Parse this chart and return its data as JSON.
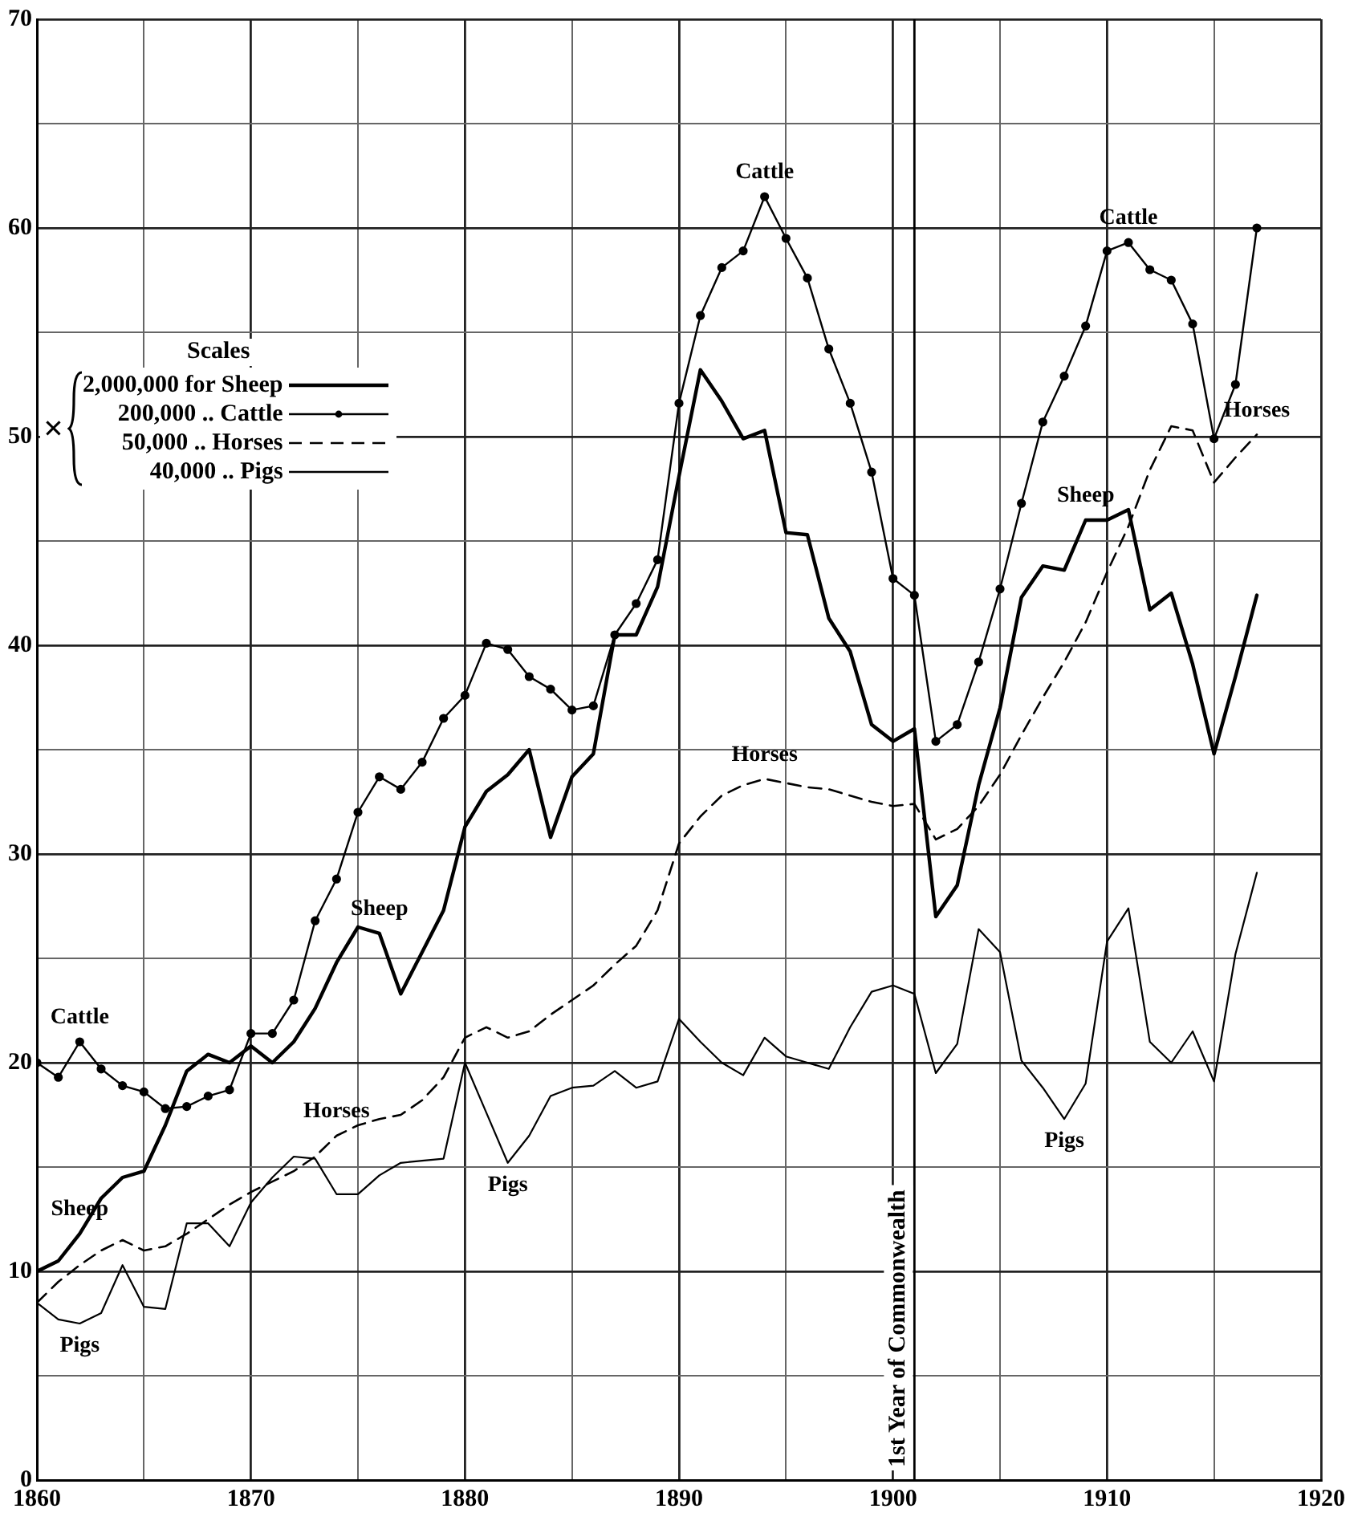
{
  "chart_data": {
    "type": "line",
    "x": [
      1860,
      1861,
      1862,
      1863,
      1864,
      1865,
      1866,
      1867,
      1868,
      1869,
      1870,
      1871,
      1872,
      1873,
      1874,
      1875,
      1876,
      1877,
      1878,
      1879,
      1880,
      1881,
      1882,
      1883,
      1884,
      1885,
      1886,
      1887,
      1888,
      1889,
      1890,
      1891,
      1892,
      1893,
      1894,
      1895,
      1896,
      1897,
      1898,
      1899,
      1900,
      1901,
      1902,
      1903,
      1904,
      1905,
      1906,
      1907,
      1908,
      1909,
      1910,
      1911,
      1912,
      1913,
      1914,
      1915,
      1916,
      1917
    ],
    "series": [
      {
        "name": "2,000,000 for Sheep",
        "color": "#000000",
        "marker": "none",
        "line_style": "solid",
        "values": [
          10.0,
          10.5,
          11.8,
          13.5,
          14.5,
          14.8,
          17.0,
          19.6,
          20.4,
          20.0,
          20.8,
          20.0,
          21.0,
          22.6,
          24.8,
          26.5,
          26.2,
          23.3,
          25.3,
          27.3,
          31.3,
          33.0,
          33.8,
          35.0,
          30.8,
          33.7,
          34.8,
          40.5,
          40.5,
          42.8,
          48.1,
          53.2,
          51.7,
          49.9,
          50.3,
          45.4,
          45.3,
          41.3,
          39.7,
          36.2,
          35.4,
          36.0,
          27.0,
          28.5,
          33.3,
          37.0,
          42.3,
          43.8,
          43.6,
          46.0,
          46.0,
          46.5,
          41.7,
          42.5,
          39.1,
          34.8,
          38.5,
          42.4
        ]
      },
      {
        "name": "200,000 .. Cattle",
        "color": "#000000",
        "marker": "circle",
        "line_style": "solid",
        "values": [
          20.0,
          19.3,
          21.0,
          19.7,
          18.9,
          18.6,
          17.8,
          17.9,
          18.4,
          18.7,
          21.4,
          21.4,
          23.0,
          26.8,
          28.8,
          32.0,
          33.7,
          33.1,
          34.4,
          36.5,
          37.6,
          40.1,
          39.8,
          38.5,
          37.9,
          36.9,
          37.1,
          40.5,
          42.0,
          44.1,
          51.6,
          55.8,
          58.1,
          58.9,
          61.5,
          59.5,
          57.6,
          54.2,
          51.6,
          48.3,
          43.2,
          42.4,
          35.4,
          36.2,
          39.2,
          42.7,
          46.8,
          50.7,
          52.9,
          55.3,
          58.9,
          59.3,
          58.0,
          57.5,
          55.4,
          49.9,
          52.5,
          60.0
        ]
      },
      {
        "name": "50,000 .. Horses",
        "color": "#000000",
        "marker": "none",
        "line_style": "dashed",
        "values": [
          8.5,
          9.5,
          10.3,
          11.0,
          11.5,
          11.0,
          11.2,
          11.8,
          12.5,
          13.2,
          13.8,
          14.3,
          14.8,
          15.5,
          16.5,
          17.0,
          17.3,
          17.5,
          18.2,
          19.3,
          21.2,
          21.7,
          21.2,
          21.5,
          22.3,
          23.0,
          23.7,
          24.7,
          25.6,
          27.3,
          30.5,
          31.8,
          32.8,
          33.3,
          33.6,
          33.4,
          33.2,
          33.1,
          32.8,
          32.5,
          32.3,
          32.4,
          30.7,
          31.2,
          32.3,
          33.8,
          35.7,
          37.5,
          39.2,
          41.1,
          43.5,
          45.7,
          48.4,
          50.5,
          50.3,
          47.8,
          49.0,
          50.1
        ]
      },
      {
        "name": "40,000 .. Pigs",
        "color": "#000000",
        "marker": "none",
        "line_style": "solid",
        "values": [
          8.5,
          7.7,
          7.5,
          8.0,
          10.3,
          8.3,
          8.2,
          12.3,
          12.3,
          11.2,
          13.3,
          14.5,
          15.5,
          15.4,
          13.7,
          13.7,
          14.6,
          15.2,
          15.3,
          15.4,
          20.0,
          17.6,
          15.2,
          16.5,
          18.4,
          18.8,
          18.9,
          19.6,
          18.8,
          19.1,
          22.1,
          21.0,
          20.0,
          19.4,
          21.2,
          20.3,
          20.0,
          19.7,
          21.7,
          23.4,
          23.7,
          23.3,
          19.5,
          20.9,
          26.4,
          25.3,
          20.1,
          18.8,
          17.3,
          19.0,
          25.8,
          27.4,
          21.0,
          20.0,
          21.5,
          19.1,
          25.2,
          29.1
        ]
      }
    ],
    "xlim": [
      1860,
      1920
    ],
    "xticks": [
      1860,
      {
        "value": 1865,
        "label": null
      },
      1870,
      {
        "value": 1875,
        "label": null
      },
      1880,
      {
        "value": 1885,
        "label": null
      },
      1890,
      {
        "value": 1895,
        "label": null
      },
      1900,
      {
        "value": 1905,
        "label": null
      },
      1910,
      {
        "value": 1915,
        "label": null
      },
      1920
    ],
    "ylim": [
      0,
      70
    ],
    "yticks": [
      0,
      {
        "value": 5,
        "label": null
      },
      10,
      {
        "value": 15,
        "label": null
      },
      20,
      {
        "value": 25,
        "label": null
      },
      30,
      {
        "value": 35,
        "label": null
      },
      40,
      {
        "value": 45,
        "label": null
      },
      50,
      {
        "value": 55,
        "label": null
      },
      60,
      {
        "value": 65,
        "label": null
      },
      70
    ],
    "grid": true,
    "legend": "top left",
    "legend_title": "Scales",
    "ref_lines": [
      {
        "axis": "x",
        "value": 1901,
        "label": "1st Year of Commonwealth"
      }
    ],
    "annotations": [
      "×",
      {
        "text": "Cattle",
        "x": 1862,
        "y": 21.0
      },
      {
        "text": "Cattle",
        "x": 1894,
        "y": 61.5
      },
      {
        "text": "Cattle",
        "x": 1911,
        "y": 59.3
      },
      {
        "text": "Sheep",
        "x": 1862,
        "y": 11.8
      },
      {
        "text": "Sheep",
        "x": 1876,
        "y": 26.2
      },
      {
        "text": "Sheep",
        "x": 1909,
        "y": 46.0
      },
      {
        "text": "Horses",
        "x": 1874,
        "y": 16.5
      },
      {
        "text": "Horses",
        "x": 1894,
        "y": 33.6
      },
      {
        "text": "Horses",
        "x": 1917,
        "y": 50.1
      },
      {
        "text": "Pigs",
        "x": 1862,
        "y": 7.5
      },
      {
        "text": "Pigs",
        "x": 1882,
        "y": 15.2
      },
      {
        "text": "Pigs",
        "x": 1908,
        "y": 17.3
      }
    ]
  }
}
